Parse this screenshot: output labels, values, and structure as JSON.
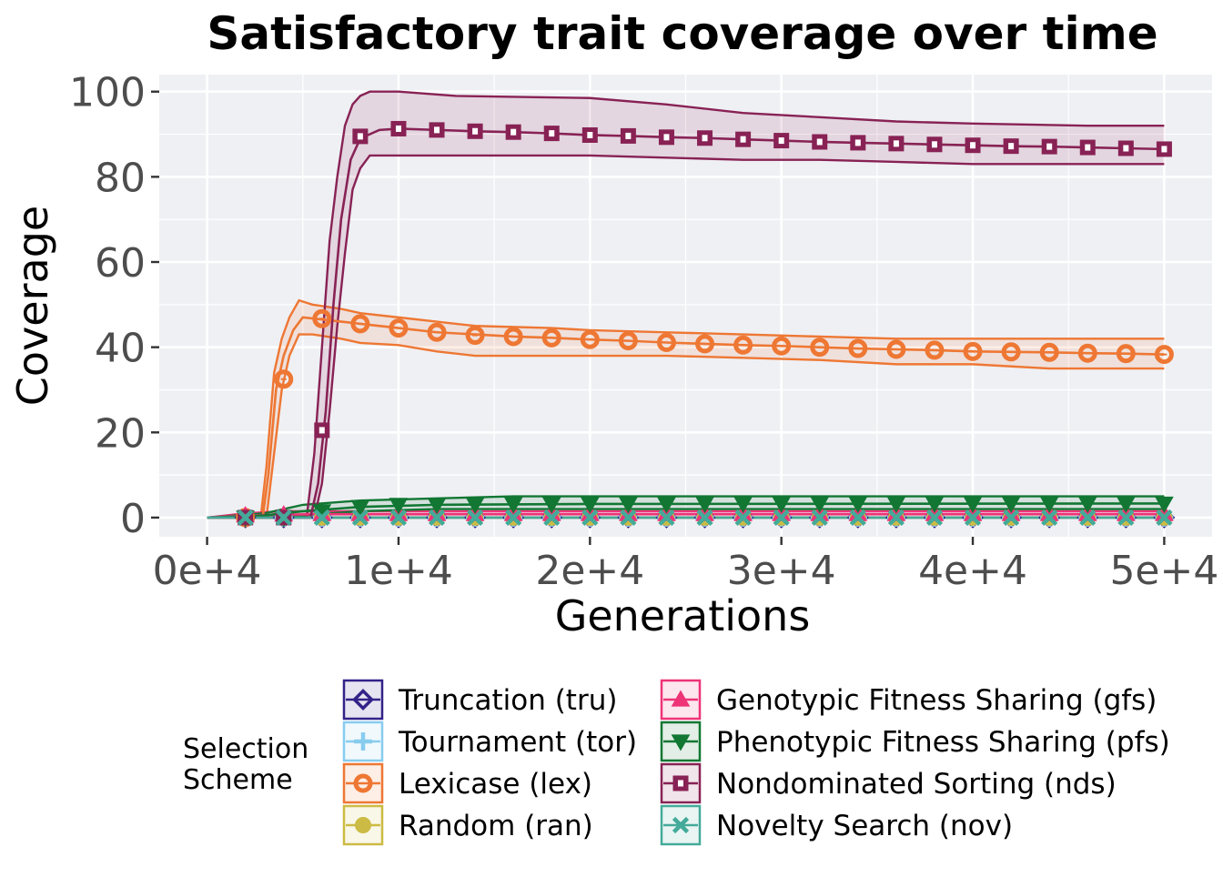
{
  "chart_data": {
    "type": "line",
    "title": "Satisfactory trait coverage over time",
    "xlabel": "Generations",
    "ylabel": "Coverage",
    "xlim": [
      -2500,
      52500
    ],
    "ylim": [
      -4.5,
      104
    ],
    "x_ticks": [
      0,
      10000,
      20000,
      30000,
      40000,
      50000
    ],
    "x_tick_labels": [
      "0e+4",
      "1e+4",
      "2e+4",
      "3e+4",
      "4e+4",
      "5e+4"
    ],
    "y_ticks": [
      0,
      20,
      40,
      60,
      80,
      100
    ],
    "y_tick_labels": [
      "0",
      "20",
      "40",
      "60",
      "80",
      "100"
    ],
    "grid": true,
    "legend": {
      "title": "Selection Scheme",
      "placement": "bottom"
    },
    "marker_x": [
      2000,
      4000,
      6000,
      8000,
      10000,
      12000,
      14000,
      16000,
      18000,
      20000,
      22000,
      24000,
      26000,
      28000,
      30000,
      32000,
      34000,
      36000,
      38000,
      40000,
      42000,
      44000,
      46000,
      48000,
      50000
    ],
    "series": [
      {
        "name": "Truncation (tru)",
        "color": "#332288",
        "marker": "diamond",
        "line": [
          [
            0,
            0
          ],
          [
            50000,
            0
          ]
        ],
        "band": [
          [
            0,
            0,
            0
          ],
          [
            50000,
            0,
            0
          ]
        ],
        "marker_y": [
          0,
          0,
          0,
          0,
          0,
          0,
          0,
          0,
          0,
          0,
          0,
          0,
          0,
          0,
          0,
          0,
          0,
          0,
          0,
          0,
          0,
          0,
          0,
          0,
          0
        ]
      },
      {
        "name": "Tournament (tor)",
        "color": "#88CCEE",
        "marker": "plus",
        "line": [
          [
            0,
            0
          ],
          [
            50000,
            0
          ]
        ],
        "band": [
          [
            0,
            0,
            0
          ],
          [
            50000,
            0,
            0
          ]
        ],
        "marker_y": [
          0,
          0,
          0,
          0,
          0,
          0,
          0,
          0,
          0,
          0,
          0,
          0,
          0,
          0,
          0,
          0,
          0,
          0,
          0,
          0,
          0,
          0,
          0,
          0,
          0
        ]
      },
      {
        "name": "Lexicase (lex)",
        "color": "#EE7733",
        "marker": "circle-open",
        "line": [
          [
            0,
            0
          ],
          [
            2900,
            0
          ],
          [
            3200,
            10
          ],
          [
            3600,
            30
          ],
          [
            4000,
            38
          ],
          [
            4500,
            44
          ],
          [
            5000,
            47
          ],
          [
            6000,
            46.5
          ],
          [
            8000,
            45.5
          ],
          [
            10000,
            44.5
          ],
          [
            12000,
            43.5
          ],
          [
            14000,
            43
          ],
          [
            16000,
            42.5
          ],
          [
            18000,
            42.2
          ],
          [
            20000,
            41.8
          ],
          [
            22000,
            41.5
          ],
          [
            24000,
            41.1
          ],
          [
            26000,
            40.8
          ],
          [
            28000,
            40.5
          ],
          [
            30000,
            40.3
          ],
          [
            32000,
            40
          ],
          [
            34000,
            39.7
          ],
          [
            36000,
            39.5
          ],
          [
            38000,
            39.3
          ],
          [
            40000,
            39
          ],
          [
            42000,
            38.9
          ],
          [
            44000,
            38.8
          ],
          [
            46000,
            38.6
          ],
          [
            48000,
            38.5
          ],
          [
            50000,
            38.3
          ]
        ],
        "band": [
          [
            0,
            0,
            0
          ],
          [
            2800,
            0,
            0
          ],
          [
            3100,
            0,
            12
          ],
          [
            3500,
            15,
            34
          ],
          [
            3900,
            30,
            42
          ],
          [
            4300,
            38,
            47
          ],
          [
            4800,
            43,
            51
          ],
          [
            5500,
            43,
            50
          ],
          [
            7000,
            42,
            49
          ],
          [
            8000,
            41,
            48
          ],
          [
            10000,
            40.5,
            47
          ],
          [
            12000,
            39,
            46
          ],
          [
            14000,
            38,
            45
          ],
          [
            18000,
            38,
            44.5
          ],
          [
            20000,
            38,
            44
          ],
          [
            24000,
            38,
            43.5
          ],
          [
            28000,
            37.5,
            43
          ],
          [
            32000,
            37,
            42.5
          ],
          [
            36000,
            36,
            42
          ],
          [
            40000,
            36,
            42
          ],
          [
            44000,
            35,
            42
          ],
          [
            50000,
            35,
            42
          ]
        ],
        "marker_y": [
          0,
          32.5,
          46.7,
          45.5,
          44.5,
          43.5,
          42.8,
          42.5,
          42.2,
          41.8,
          41.5,
          41.1,
          40.8,
          40.5,
          40.3,
          40,
          39.7,
          39.5,
          39.3,
          39,
          38.9,
          38.8,
          38.6,
          38.5,
          38.3
        ]
      },
      {
        "name": "Random (ran)",
        "color": "#CCBB44",
        "marker": "circle",
        "line": [
          [
            0,
            0
          ],
          [
            50000,
            0
          ]
        ],
        "band": [
          [
            0,
            0,
            0
          ],
          [
            50000,
            0,
            0
          ]
        ],
        "marker_y": [
          0,
          0,
          0,
          0,
          0,
          0,
          0,
          0,
          0,
          0,
          0,
          0,
          0,
          0,
          0,
          0,
          0,
          0,
          0,
          0,
          0,
          0,
          0,
          0,
          0
        ]
      },
      {
        "name": "Genotypic Fitness Sharing (gfs)",
        "color": "#EE3377",
        "marker": "triangle",
        "line": [
          [
            0,
            0
          ],
          [
            2000,
            0.5
          ],
          [
            4000,
            0.7
          ],
          [
            6000,
            0.8
          ],
          [
            50000,
            0.8
          ]
        ],
        "band": [
          [
            0,
            0,
            0
          ],
          [
            2000,
            0,
            1
          ],
          [
            4000,
            0,
            1.5
          ],
          [
            50000,
            0,
            1.5
          ]
        ],
        "marker_y": [
          0.5,
          0.7,
          0.8,
          0.8,
          0.8,
          0.8,
          0.8,
          0.8,
          0.8,
          0.8,
          0.8,
          0.8,
          0.8,
          0.8,
          0.8,
          0.8,
          0.8,
          0.8,
          0.8,
          0.8,
          0.8,
          0.8,
          0.8,
          0.8,
          0.8
        ]
      },
      {
        "name": "Phenotypic Fitness Sharing (pfs)",
        "color": "#117733",
        "marker": "triangle-down",
        "line": [
          [
            0,
            0
          ],
          [
            3000,
            0.5
          ],
          [
            5000,
            1.5
          ],
          [
            8000,
            2.5
          ],
          [
            12000,
            3
          ],
          [
            20000,
            3.2
          ],
          [
            50000,
            3.3
          ]
        ],
        "band": [
          [
            0,
            0,
            0
          ],
          [
            3000,
            0,
            1
          ],
          [
            5000,
            0.5,
            3
          ],
          [
            8000,
            1.5,
            4
          ],
          [
            12000,
            2,
            4.5
          ],
          [
            16000,
            2,
            5
          ],
          [
            50000,
            2,
            5
          ]
        ],
        "marker_y": [
          0,
          0,
          1.5,
          2.5,
          3,
          3,
          3.1,
          3.2,
          3.2,
          3.2,
          3.2,
          3.2,
          3.3,
          3.3,
          3.3,
          3.3,
          3.3,
          3.3,
          3.3,
          3.3,
          3.3,
          3.3,
          3.3,
          3.3,
          3.3
        ]
      },
      {
        "name": "Nondominated Sorting (nds)",
        "color": "#882255",
        "marker": "square",
        "line": [
          [
            0,
            0
          ],
          [
            5400,
            0
          ],
          [
            5800,
            8
          ],
          [
            6200,
            25
          ],
          [
            6600,
            50
          ],
          [
            7000,
            70
          ],
          [
            7500,
            84
          ],
          [
            8000,
            89
          ],
          [
            9000,
            91
          ],
          [
            10000,
            91.3
          ],
          [
            12000,
            91
          ],
          [
            14000,
            90.7
          ],
          [
            16000,
            90.5
          ],
          [
            18000,
            90.2
          ],
          [
            20000,
            89.8
          ],
          [
            22000,
            89.6
          ],
          [
            24000,
            89.3
          ],
          [
            26000,
            89.1
          ],
          [
            28000,
            88.8
          ],
          [
            30000,
            88.5
          ],
          [
            32000,
            88.2
          ],
          [
            34000,
            88
          ],
          [
            36000,
            87.8
          ],
          [
            38000,
            87.6
          ],
          [
            40000,
            87.4
          ],
          [
            42000,
            87.2
          ],
          [
            44000,
            87.1
          ],
          [
            46000,
            86.9
          ],
          [
            48000,
            86.7
          ],
          [
            50000,
            86.5
          ]
        ],
        "band": [
          [
            0,
            0,
            0
          ],
          [
            5200,
            0,
            0
          ],
          [
            5600,
            0,
            15
          ],
          [
            6000,
            8,
            40
          ],
          [
            6400,
            25,
            65
          ],
          [
            6800,
            45,
            80
          ],
          [
            7200,
            62,
            92
          ],
          [
            7600,
            77,
            97
          ],
          [
            8000,
            82,
            99
          ],
          [
            8500,
            85,
            100
          ],
          [
            10000,
            85,
            100
          ],
          [
            13000,
            85,
            99
          ],
          [
            20000,
            85,
            98.5
          ],
          [
            24000,
            84.5,
            97
          ],
          [
            28000,
            84,
            95
          ],
          [
            32000,
            84,
            94
          ],
          [
            36000,
            83.5,
            93
          ],
          [
            40000,
            83,
            92.5
          ],
          [
            46000,
            83,
            92
          ],
          [
            50000,
            83,
            92
          ]
        ],
        "marker_y": [
          0,
          0,
          20.5,
          89.5,
          91.3,
          91,
          90.7,
          90.5,
          90.2,
          89.8,
          89.6,
          89.3,
          89.1,
          88.8,
          88.5,
          88.2,
          88,
          87.8,
          87.6,
          87.4,
          87.2,
          87.1,
          86.9,
          86.7,
          86.5
        ]
      },
      {
        "name": "Novelty Search (nov)",
        "color": "#44AA99",
        "marker": "x",
        "line": [
          [
            0,
            0
          ],
          [
            50000,
            0
          ]
        ],
        "band": [
          [
            0,
            0,
            0
          ],
          [
            50000,
            0,
            0
          ]
        ],
        "marker_y": [
          0,
          0,
          0,
          0,
          0,
          0,
          0,
          0,
          0,
          0,
          0,
          0,
          0,
          0,
          0,
          0,
          0,
          0,
          0,
          0,
          0,
          0,
          0,
          0,
          0
        ]
      }
    ]
  }
}
